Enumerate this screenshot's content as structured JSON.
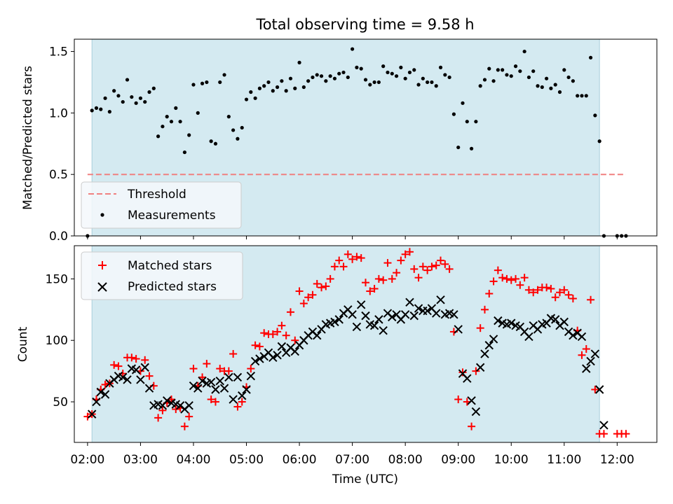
{
  "chart_data": [
    {
      "type": "scatter",
      "title": "Total observing time = 9.58 h",
      "xlabel": "",
      "ylabel": "Matched/Predicted stars",
      "xlim": [
        "01:45",
        "12:45"
      ],
      "ylim": [
        0,
        1.6
      ],
      "yticks": [
        0.0,
        0.5,
        1.0,
        1.5
      ],
      "ytick_labels": [
        "0.0",
        "0.5",
        "1.0",
        "1.5"
      ],
      "shaded_span": [
        "02:05",
        "11:40"
      ],
      "shade_color": "#d4eaf1",
      "legend_position": "lower-left",
      "threshold": {
        "name": "Threshold",
        "value": 0.5,
        "x_range": [
          "02:00",
          "12:10"
        ],
        "color": "#f08080"
      },
      "series": [
        {
          "name": "Measurements",
          "marker": "dot",
          "color": "#000000",
          "x": [
            "02:00",
            "02:05",
            "02:10",
            "02:15",
            "02:20",
            "02:25",
            "02:30",
            "02:35",
            "02:40",
            "02:45",
            "02:50",
            "02:55",
            "03:00",
            "03:05",
            "03:10",
            "03:15",
            "03:20",
            "03:25",
            "03:30",
            "03:35",
            "03:40",
            "03:45",
            "03:50",
            "03:55",
            "04:00",
            "04:05",
            "04:10",
            "04:15",
            "04:20",
            "04:25",
            "04:30",
            "04:35",
            "04:40",
            "04:45",
            "04:50",
            "04:55",
            "05:00",
            "05:05",
            "05:10",
            "05:15",
            "05:20",
            "05:25",
            "05:30",
            "05:35",
            "05:40",
            "05:45",
            "05:50",
            "05:55",
            "06:00",
            "06:05",
            "06:10",
            "06:15",
            "06:20",
            "06:25",
            "06:30",
            "06:35",
            "06:40",
            "06:45",
            "06:50",
            "06:55",
            "07:00",
            "07:05",
            "07:10",
            "07:15",
            "07:20",
            "07:25",
            "07:30",
            "07:35",
            "07:40",
            "07:45",
            "07:50",
            "07:55",
            "08:00",
            "08:05",
            "08:10",
            "08:15",
            "08:20",
            "08:25",
            "08:30",
            "08:35",
            "08:40",
            "08:45",
            "08:50",
            "08:55",
            "09:00",
            "09:05",
            "09:10",
            "09:15",
            "09:20",
            "09:25",
            "09:30",
            "09:35",
            "09:40",
            "09:45",
            "09:50",
            "09:55",
            "10:00",
            "10:05",
            "10:10",
            "10:15",
            "10:20",
            "10:25",
            "10:30",
            "10:35",
            "10:40",
            "10:45",
            "10:50",
            "10:55",
            "11:00",
            "11:05",
            "11:10",
            "11:15",
            "11:20",
            "11:25",
            "11:30",
            "11:35",
            "11:40",
            "11:45",
            "12:00",
            "12:05",
            "12:10"
          ],
          "y": [
            0.0,
            1.02,
            1.04,
            1.03,
            1.12,
            1.01,
            1.18,
            1.14,
            1.09,
            1.27,
            1.13,
            1.08,
            1.12,
            1.09,
            1.17,
            1.2,
            0.81,
            0.89,
            0.97,
            0.93,
            1.04,
            0.93,
            0.68,
            0.82,
            1.23,
            1.0,
            1.24,
            1.25,
            0.77,
            0.75,
            1.25,
            1.31,
            0.97,
            0.86,
            0.79,
            0.88,
            1.11,
            1.17,
            1.12,
            1.2,
            1.22,
            1.25,
            1.18,
            1.21,
            1.26,
            1.18,
            1.28,
            1.2,
            1.41,
            1.21,
            1.26,
            1.29,
            1.31,
            1.3,
            1.26,
            1.3,
            1.28,
            1.32,
            1.33,
            1.29,
            1.52,
            1.37,
            1.36,
            1.27,
            1.23,
            1.25,
            1.25,
            1.38,
            1.33,
            1.32,
            1.3,
            1.37,
            1.28,
            1.33,
            1.35,
            1.23,
            1.28,
            1.25,
            1.25,
            1.22,
            1.37,
            1.31,
            1.29,
            0.99,
            0.72,
            1.08,
            0.93,
            0.71,
            0.93,
            1.22,
            1.27,
            1.36,
            1.26,
            1.35,
            1.35,
            1.31,
            1.3,
            1.38,
            1.34,
            1.5,
            1.29,
            1.34,
            1.22,
            1.21,
            1.28,
            1.2,
            1.23,
            1.17,
            1.35,
            1.29,
            1.26,
            1.14,
            1.14,
            1.14,
            1.45,
            0.98,
            0.77,
            0.0,
            0.0,
            0.0,
            0.0
          ]
        }
      ]
    },
    {
      "type": "scatter",
      "title": "",
      "xlabel": "Time (UTC)",
      "ylabel": "Count",
      "xlim": [
        "01:45",
        "12:45"
      ],
      "ylim": [
        17,
        177
      ],
      "yticks": [
        50,
        100,
        150
      ],
      "ytick_labels": [
        "50",
        "100",
        "150"
      ],
      "xticks": [
        "02:00",
        "03:00",
        "04:00",
        "05:00",
        "06:00",
        "07:00",
        "08:00",
        "09:00",
        "10:00",
        "11:00",
        "12:00"
      ],
      "shaded_span": [
        "02:05",
        "11:40"
      ],
      "shade_color": "#d4eaf1",
      "legend_position": "upper-left",
      "x": [
        "02:00",
        "02:05",
        "02:10",
        "02:15",
        "02:20",
        "02:25",
        "02:30",
        "02:35",
        "02:40",
        "02:45",
        "02:50",
        "02:55",
        "03:00",
        "03:05",
        "03:10",
        "03:15",
        "03:20",
        "03:25",
        "03:30",
        "03:35",
        "03:40",
        "03:45",
        "03:50",
        "03:55",
        "04:00",
        "04:05",
        "04:10",
        "04:15",
        "04:20",
        "04:25",
        "04:30",
        "04:35",
        "04:40",
        "04:45",
        "04:50",
        "04:55",
        "05:00",
        "05:05",
        "05:10",
        "05:15",
        "05:20",
        "05:25",
        "05:30",
        "05:35",
        "05:40",
        "05:45",
        "05:50",
        "05:55",
        "06:00",
        "06:05",
        "06:10",
        "06:15",
        "06:20",
        "06:25",
        "06:30",
        "06:35",
        "06:40",
        "06:45",
        "06:50",
        "06:55",
        "07:00",
        "07:05",
        "07:10",
        "07:15",
        "07:20",
        "07:25",
        "07:30",
        "07:35",
        "07:40",
        "07:45",
        "07:50",
        "07:55",
        "08:00",
        "08:05",
        "08:10",
        "08:15",
        "08:20",
        "08:25",
        "08:30",
        "08:35",
        "08:40",
        "08:45",
        "08:50",
        "08:55",
        "09:00",
        "09:05",
        "09:10",
        "09:15",
        "09:20",
        "09:25",
        "09:30",
        "09:35",
        "09:40",
        "09:45",
        "09:50",
        "09:55",
        "10:00",
        "10:05",
        "10:10",
        "10:15",
        "10:20",
        "10:25",
        "10:30",
        "10:35",
        "10:40",
        "10:45",
        "10:50",
        "10:55",
        "11:00",
        "11:05",
        "11:10",
        "11:15",
        "11:20",
        "11:25",
        "11:30",
        "11:35",
        "11:40",
        "11:45",
        "12:00",
        "12:05",
        "12:10"
      ],
      "series": [
        {
          "name": "Matched stars",
          "marker": "plus",
          "color": "#ff0000",
          "y": [
            38,
            40,
            52,
            60,
            64,
            65,
            80,
            79,
            73,
            86,
            86,
            85,
            75,
            84,
            71,
            63,
            37,
            43,
            49,
            52,
            44,
            45,
            30,
            38,
            77,
            63,
            70,
            81,
            52,
            50,
            77,
            75,
            75,
            89,
            46,
            50,
            62,
            77,
            96,
            95,
            106,
            105,
            105,
            107,
            112,
            104,
            123,
            100,
            140,
            130,
            135,
            137,
            146,
            143,
            144,
            150,
            160,
            165,
            160,
            170,
            166,
            168,
            167,
            147,
            140,
            142,
            150,
            149,
            163,
            150,
            155,
            165,
            170,
            172,
            158,
            151,
            160,
            157,
            160,
            161,
            165,
            162,
            158,
            107,
            52,
            74,
            50,
            30,
            75,
            110,
            125,
            138,
            148,
            157,
            151,
            150,
            149,
            150,
            145,
            151,
            141,
            139,
            141,
            143,
            143,
            142,
            135,
            139,
            141,
            137,
            134,
            108,
            88,
            93,
            133,
            60,
            24,
            24,
            24,
            24,
            24
          ]
        },
        {
          "name": "Predicted stars",
          "marker": "x",
          "color": "#000000",
          "y": [
            null,
            40,
            50,
            58,
            56,
            65,
            68,
            71,
            70,
            68,
            77,
            76,
            68,
            78,
            61,
            47,
            48,
            47,
            51,
            49,
            48,
            47,
            44,
            47,
            63,
            61,
            67,
            65,
            66,
            60,
            67,
            61,
            70,
            52,
            70,
            55,
            60,
            71,
            83,
            85,
            87,
            90,
            86,
            88,
            95,
            90,
            94,
            91,
            96,
            100,
            104,
            107,
            104,
            109,
            113,
            114,
            115,
            117,
            122,
            125,
            121,
            111,
            129,
            120,
            113,
            112,
            117,
            108,
            122,
            119,
            121,
            117,
            121,
            131,
            120,
            126,
            124,
            124,
            126,
            122,
            133,
            121,
            122,
            121,
            109,
            73,
            69,
            51,
            42,
            78,
            89,
            96,
            101,
            116,
            114,
            113,
            114,
            112,
            111,
            107,
            103,
            112,
            109,
            113,
            114,
            118,
            117,
            112,
            115,
            107,
            104,
            106,
            103,
            77,
            83,
            89,
            60,
            31,
            null,
            null,
            null
          ]
        }
      ]
    }
  ]
}
